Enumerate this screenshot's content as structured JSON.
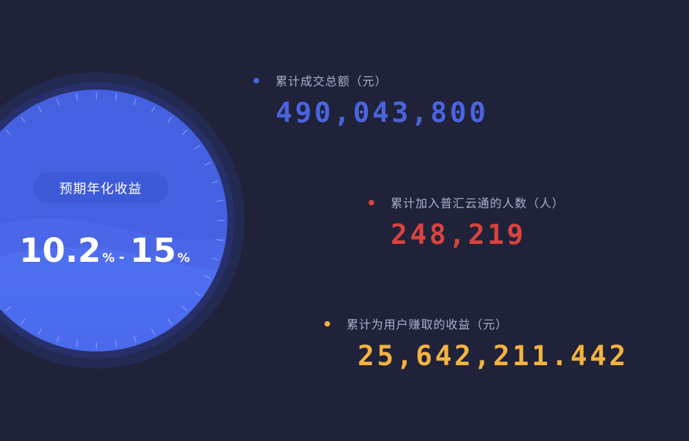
{
  "dial": {
    "badge_label": "预期年化收益",
    "rate_low": "10.2",
    "rate_low_unit": "%",
    "rate_sep": "-",
    "rate_high": "15",
    "rate_high_unit": "%"
  },
  "stats": [
    {
      "label": "累计成交总额（元）",
      "value": "490,043,800",
      "color": "#4a64e0"
    },
    {
      "label": "累计加入普汇云通的人数（人）",
      "value": "248,219",
      "color": "#d9433d"
    },
    {
      "label": "累计为用户赚取的收益（元）",
      "value": "25,642,211.442",
      "color": "#f3b33e"
    }
  ],
  "colors": {
    "background": "#20223a",
    "dial_outer": "#232a52",
    "dial_blue": "#4561e2",
    "badge": "#3d5ad8"
  }
}
